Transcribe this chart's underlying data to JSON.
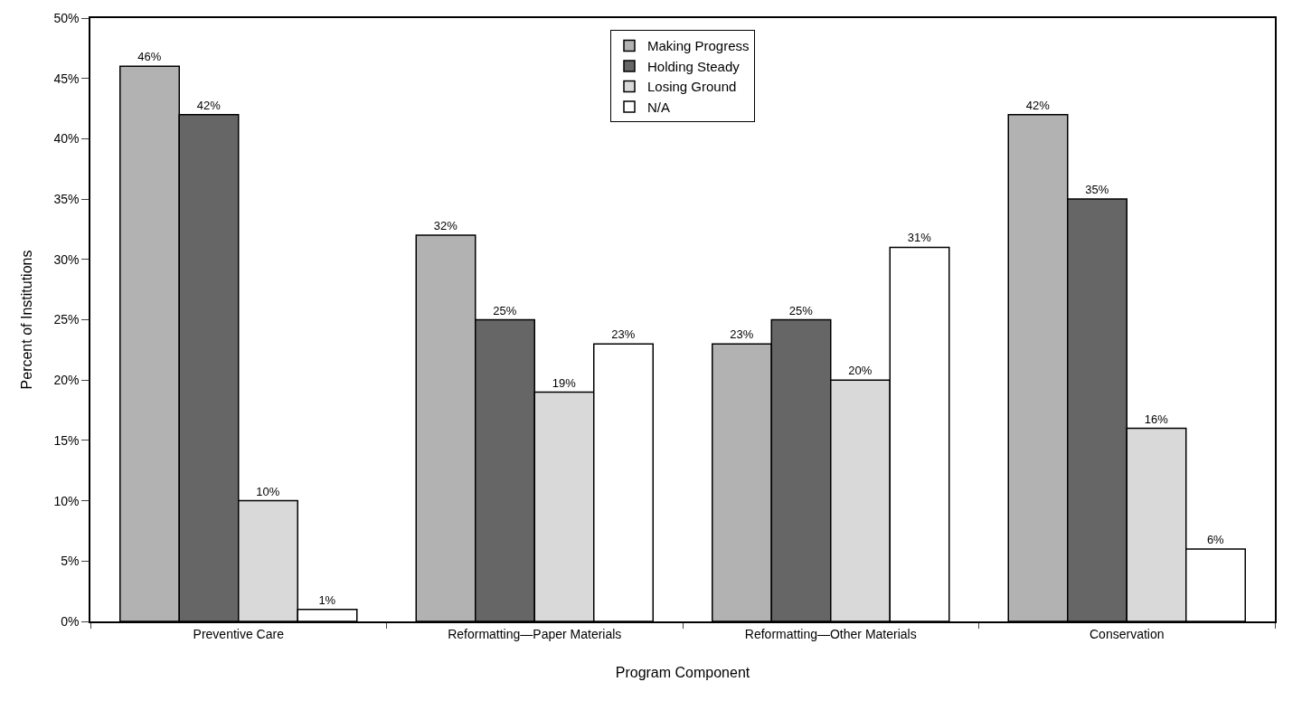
{
  "chart_data": {
    "type": "bar",
    "xlabel": "Program Component",
    "ylabel": "Percent of Institutions",
    "categories": [
      "Preventive Care",
      "Reformatting—Paper Materials",
      "Reformatting—Other Materials",
      "Conservation"
    ],
    "series": [
      {
        "name": "Making Progress",
        "color": "#b2b2b2",
        "values": [
          46,
          32,
          23,
          42
        ],
        "value_labels": [
          "46%",
          "32%",
          "23%",
          "42%"
        ]
      },
      {
        "name": "Holding Steady",
        "color": "#666666",
        "values": [
          42,
          25,
          25,
          35
        ],
        "value_labels": [
          "42%",
          "25%",
          "25%",
          "35%"
        ]
      },
      {
        "name": "Losing Ground",
        "color": "#d9d9d9",
        "values": [
          10,
          19,
          20,
          16
        ],
        "value_labels": [
          "10%",
          "19%",
          "20%",
          "16%"
        ]
      },
      {
        "name": "N/A",
        "color": "#ffffff",
        "values": [
          1,
          23,
          31,
          6
        ],
        "value_labels": [
          "1%",
          "23%",
          "31%",
          "6%"
        ]
      }
    ],
    "ylim": [
      0,
      50
    ],
    "yticks": [
      {
        "value": 0,
        "label": "0%"
      },
      {
        "value": 5,
        "label": "5%"
      },
      {
        "value": 10,
        "label": "10%"
      },
      {
        "value": 15,
        "label": "15%"
      },
      {
        "value": 20,
        "label": "20%"
      },
      {
        "value": 25,
        "label": "25%"
      },
      {
        "value": 30,
        "label": "30%"
      },
      {
        "value": 35,
        "label": "35%"
      },
      {
        "value": 40,
        "label": "40%"
      },
      {
        "value": 45,
        "label": "45%"
      },
      {
        "value": 50,
        "label": "50%"
      }
    ],
    "grid": false,
    "legend": "top"
  }
}
